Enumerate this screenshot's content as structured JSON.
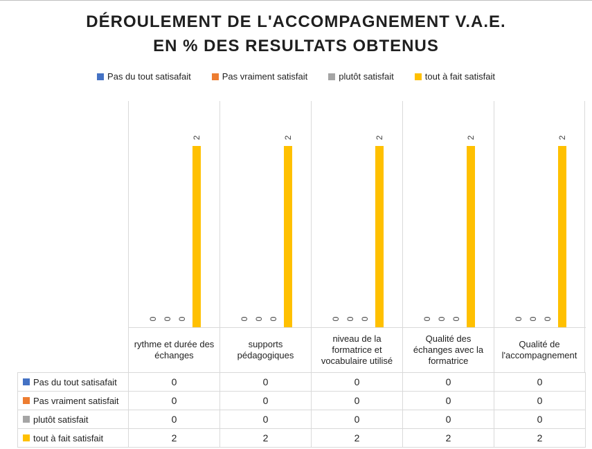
{
  "title": {
    "line1": "DÉROULEMENT DE L'ACCOMPAGNEMENT V.A.E.",
    "line2": "EN % DES RESULTATS OBTENUS"
  },
  "chart_data": {
    "type": "bar",
    "title": "DÉROULEMENT DE L'ACCOMPAGNEMENT V.A.E. EN % DES RESULTATS OBTENUS",
    "categories": [
      "rythme et durée des échanges",
      "supports pédagogiques",
      "niveau de la formatrice et vocabulaire utilisé",
      "Qualité des échanges avec la formatrice",
      "Qualité de l'accompagnement"
    ],
    "series": [
      {
        "name": "Pas du tout satisafait",
        "color": "#4472C4",
        "values": [
          0,
          0,
          0,
          0,
          0
        ]
      },
      {
        "name": "Pas vraiment satisfait",
        "color": "#ED7D31",
        "values": [
          0,
          0,
          0,
          0,
          0
        ]
      },
      {
        "name": "plutôt satisfait",
        "color": "#A5A5A5",
        "values": [
          0,
          0,
          0,
          0,
          0
        ]
      },
      {
        "name": "tout à fait satisfait",
        "color": "#FFC000",
        "values": [
          2,
          2,
          2,
          2,
          2
        ]
      }
    ],
    "ylim": [
      0,
      2.5
    ],
    "xlabel": "",
    "ylabel": "",
    "grid": "vertical-category-separators-only",
    "legend_position": "top",
    "data_labels_rotation_deg": -90,
    "data_table_shown_with_legend_keys": true
  },
  "colors": {
    "grid_border": "#d9d9d9",
    "data_label": "#404040",
    "text": "#1f1f1f",
    "background": "#ffffff"
  }
}
